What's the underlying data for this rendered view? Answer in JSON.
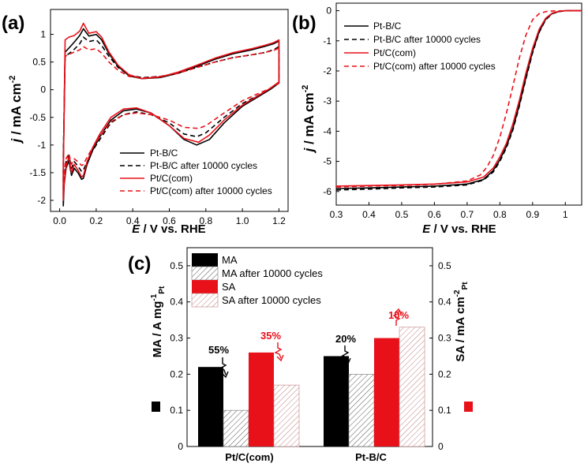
{
  "chart_data": [
    {
      "panel": "(a)",
      "type": "line",
      "xlabel_var": "E",
      "xlabel_rest": " / V vs. RHE",
      "ylabel_var": "j",
      "ylabel_rest": " / mA cm",
      "ylabel_sup": "-2",
      "xlim": [
        -0.05,
        1.25
      ],
      "ylim": [
        -2.2,
        1.45
      ],
      "xticks": [
        "0.0",
        "0.2",
        "0.4",
        "0.6",
        "0.8",
        "1.0",
        "1.2"
      ],
      "yticks": [
        "1",
        "0.5",
        "0",
        "-0.5",
        "-1",
        "-1.5",
        "-2"
      ],
      "series": [
        {
          "name": "Pt-B/C",
          "color": "#000000",
          "dash": "solid",
          "x": [
            0.02,
            0.03,
            0.05,
            0.08,
            0.11,
            0.13,
            0.16,
            0.2,
            0.23,
            0.27,
            0.32,
            0.38,
            0.45,
            0.55,
            0.65,
            0.75,
            0.85,
            0.95,
            1.05,
            1.12,
            1.17,
            1.2,
            1.2,
            1.15,
            1.1,
            1.0,
            0.9,
            0.82,
            0.75,
            0.68,
            0.6,
            0.5,
            0.42,
            0.35,
            0.28,
            0.22,
            0.18,
            0.15,
            0.13,
            0.12,
            0.1,
            0.08,
            0.065,
            0.05,
            0.035,
            0.025,
            0.02,
            0.02
          ],
          "y": [
            -1.4,
            0.68,
            0.75,
            0.86,
            0.98,
            1.1,
            0.97,
            1.0,
            0.9,
            0.65,
            0.42,
            0.25,
            0.2,
            0.22,
            0.3,
            0.42,
            0.55,
            0.65,
            0.72,
            0.78,
            0.83,
            0.88,
            0.12,
            0.0,
            -0.1,
            -0.3,
            -0.6,
            -0.9,
            -1.0,
            -0.9,
            -0.65,
            -0.42,
            -0.35,
            -0.38,
            -0.55,
            -0.85,
            -1.1,
            -1.35,
            -1.6,
            -1.62,
            -1.5,
            -1.42,
            -1.55,
            -1.28,
            -1.42,
            -1.7,
            -2.1,
            -1.4
          ]
        },
        {
          "name": "Pt-B/C after 10000 cycles",
          "color": "#000000",
          "dash": "6,4",
          "x": [
            0.02,
            0.03,
            0.05,
            0.08,
            0.11,
            0.13,
            0.16,
            0.2,
            0.23,
            0.27,
            0.32,
            0.38,
            0.45,
            0.55,
            0.65,
            0.75,
            0.85,
            0.95,
            1.05,
            1.12,
            1.17,
            1.2,
            1.2,
            1.15,
            1.1,
            1.0,
            0.9,
            0.8,
            0.75,
            0.68,
            0.6,
            0.5,
            0.42,
            0.35,
            0.28,
            0.22,
            0.18,
            0.15,
            0.13,
            0.12,
            0.1,
            0.08,
            0.065,
            0.05,
            0.035,
            0.025,
            0.02,
            0.02
          ],
          "y": [
            -1.2,
            0.6,
            0.65,
            0.73,
            0.83,
            0.95,
            0.87,
            0.9,
            0.8,
            0.6,
            0.4,
            0.26,
            0.22,
            0.24,
            0.3,
            0.4,
            0.5,
            0.58,
            0.63,
            0.67,
            0.72,
            0.78,
            0.12,
            0.0,
            -0.08,
            -0.25,
            -0.5,
            -0.78,
            -0.85,
            -0.8,
            -0.6,
            -0.45,
            -0.4,
            -0.45,
            -0.6,
            -0.9,
            -1.1,
            -1.3,
            -1.45,
            -1.48,
            -1.38,
            -1.3,
            -1.42,
            -1.18,
            -1.3,
            -1.55,
            -1.9,
            -1.2
          ]
        },
        {
          "name": "Pt/C(com)",
          "color": "#e8111a",
          "dash": "solid",
          "x": [
            0.02,
            0.03,
            0.05,
            0.08,
            0.11,
            0.13,
            0.16,
            0.2,
            0.23,
            0.27,
            0.32,
            0.38,
            0.45,
            0.55,
            0.65,
            0.75,
            0.85,
            0.95,
            1.05,
            1.12,
            1.17,
            1.2,
            1.2,
            1.15,
            1.1,
            1.0,
            0.9,
            0.82,
            0.76,
            0.68,
            0.6,
            0.5,
            0.42,
            0.35,
            0.28,
            0.22,
            0.18,
            0.15,
            0.13,
            0.12,
            0.1,
            0.08,
            0.065,
            0.05,
            0.035,
            0.025,
            0.02,
            0.02
          ],
          "y": [
            -1.5,
            0.9,
            0.95,
            0.98,
            1.06,
            1.2,
            1.02,
            1.05,
            0.95,
            0.68,
            0.44,
            0.27,
            0.2,
            0.23,
            0.32,
            0.44,
            0.57,
            0.67,
            0.74,
            0.8,
            0.85,
            0.9,
            0.14,
            0.02,
            -0.08,
            -0.28,
            -0.55,
            -0.82,
            -0.95,
            -0.88,
            -0.65,
            -0.42,
            -0.33,
            -0.35,
            -0.5,
            -0.8,
            -1.05,
            -1.3,
            -1.55,
            -1.58,
            -1.45,
            -1.35,
            -1.5,
            -1.22,
            -1.38,
            -1.65,
            -2.0,
            -1.5
          ]
        },
        {
          "name": "Pt/C(com) after 10000 cycles",
          "color": "#e8111a",
          "dash": "6,4",
          "x": [
            0.02,
            0.03,
            0.05,
            0.08,
            0.11,
            0.13,
            0.16,
            0.2,
            0.23,
            0.27,
            0.32,
            0.38,
            0.45,
            0.55,
            0.65,
            0.75,
            0.85,
            0.95,
            1.05,
            1.12,
            1.17,
            1.2,
            1.2,
            1.15,
            1.1,
            1.0,
            0.9,
            0.8,
            0.76,
            0.68,
            0.6,
            0.5,
            0.42,
            0.35,
            0.28,
            0.22,
            0.18,
            0.15,
            0.13,
            0.12,
            0.1,
            0.08,
            0.065,
            0.05,
            0.035,
            0.025,
            0.02,
            0.02
          ],
          "y": [
            -1.3,
            0.6,
            0.64,
            0.68,
            0.72,
            0.78,
            0.72,
            0.74,
            0.66,
            0.5,
            0.35,
            0.24,
            0.21,
            0.24,
            0.3,
            0.4,
            0.5,
            0.58,
            0.63,
            0.67,
            0.71,
            0.75,
            0.12,
            0.02,
            -0.05,
            -0.2,
            -0.42,
            -0.65,
            -0.7,
            -0.68,
            -0.55,
            -0.45,
            -0.42,
            -0.45,
            -0.58,
            -0.85,
            -1.05,
            -1.22,
            -1.35,
            -1.37,
            -1.3,
            -1.25,
            -1.35,
            -1.15,
            -1.25,
            -1.45,
            -1.7,
            -1.3
          ]
        }
      ]
    },
    {
      "panel": "(b)",
      "type": "line",
      "xlabel_var": "E",
      "xlabel_rest": " / V vs. RHE",
      "ylabel_var": "j",
      "ylabel_rest": " / mA cm",
      "ylabel_sup": "-2",
      "xlim": [
        0.3,
        1.05
      ],
      "ylim": [
        -6.45,
        0.25
      ],
      "xticks": [
        "0.3",
        "0.4",
        "0.5",
        "0.6",
        "0.7",
        "0.8",
        "0.9",
        "1"
      ],
      "yticks": [
        "0",
        "-1",
        "-2",
        "-3",
        "-4",
        "-5",
        "-6"
      ],
      "series": [
        {
          "name": "Pt-B/C",
          "color": "#000000",
          "dash": "solid",
          "x": [
            0.3,
            0.4,
            0.5,
            0.6,
            0.7,
            0.75,
            0.78,
            0.8,
            0.82,
            0.84,
            0.86,
            0.88,
            0.9,
            0.92,
            0.94,
            0.96,
            0.98,
            1.0,
            1.05
          ],
          "y": [
            -5.9,
            -5.88,
            -5.85,
            -5.82,
            -5.75,
            -5.6,
            -5.3,
            -4.95,
            -4.5,
            -3.9,
            -3.1,
            -2.2,
            -1.35,
            -0.7,
            -0.28,
            -0.09,
            -0.03,
            0.0,
            0.0
          ]
        },
        {
          "name": "Pt-B/C after 10000 cycles",
          "color": "#000000",
          "dash": "6,4",
          "x": [
            0.3,
            0.4,
            0.5,
            0.6,
            0.7,
            0.75,
            0.78,
            0.8,
            0.82,
            0.84,
            0.86,
            0.88,
            0.9,
            0.92,
            0.94,
            0.96,
            0.98,
            1.0,
            1.05
          ],
          "y": [
            -5.95,
            -5.92,
            -5.88,
            -5.85,
            -5.78,
            -5.62,
            -5.35,
            -5.0,
            -4.55,
            -3.95,
            -3.15,
            -2.25,
            -1.4,
            -0.72,
            -0.3,
            -0.1,
            -0.03,
            0.0,
            0.0
          ]
        },
        {
          "name": "Pt/C(com)",
          "color": "#e8111a",
          "dash": "solid",
          "x": [
            0.3,
            0.4,
            0.5,
            0.6,
            0.7,
            0.75,
            0.78,
            0.8,
            0.82,
            0.84,
            0.86,
            0.88,
            0.9,
            0.92,
            0.94,
            0.96,
            0.98,
            1.0,
            1.05
          ],
          "y": [
            -5.82,
            -5.8,
            -5.78,
            -5.75,
            -5.68,
            -5.52,
            -5.22,
            -4.85,
            -4.4,
            -3.75,
            -2.95,
            -2.05,
            -1.25,
            -0.62,
            -0.25,
            -0.08,
            -0.02,
            0.0,
            0.0
          ]
        },
        {
          "name": "Pt/C(com) after 10000 cycles",
          "color": "#e8111a",
          "dash": "6,4",
          "x": [
            0.3,
            0.4,
            0.5,
            0.6,
            0.7,
            0.74,
            0.76,
            0.78,
            0.8,
            0.82,
            0.84,
            0.86,
            0.88,
            0.9,
            0.92,
            0.94,
            0.96,
            1.0,
            1.05
          ],
          "y": [
            -5.85,
            -5.82,
            -5.8,
            -5.76,
            -5.65,
            -5.45,
            -5.2,
            -4.8,
            -4.2,
            -3.4,
            -2.5,
            -1.55,
            -0.8,
            -0.3,
            -0.1,
            -0.03,
            -0.01,
            0.0,
            0.0
          ]
        }
      ]
    },
    {
      "panel": "(c)",
      "type": "bar",
      "categories": [
        "Pt/C(com)",
        "Pt-B/C"
      ],
      "ylim": [
        0,
        0.55
      ],
      "yticks": [
        "0",
        "0.1",
        "0.2",
        "0.3",
        "0.4",
        "0.5"
      ],
      "ylabel_left": "MA / A mg",
      "ylabel_left_sup": "-1",
      "ylabel_left_sub": "Pt",
      "ylabel_right": "SA / mA cm",
      "ylabel_right_sup": "-2",
      "ylabel_right_sub": "Pt",
      "series": [
        {
          "name": "MA",
          "fill": "solid",
          "color": "#000000",
          "values": [
            0.22,
            0.25
          ]
        },
        {
          "name": "MA after 10000 cycles",
          "fill": "hatch",
          "color": "#000000",
          "values": [
            0.1,
            0.2
          ]
        },
        {
          "name": "SA",
          "fill": "solid",
          "color": "#e8111a",
          "values": [
            0.26,
            0.3
          ]
        },
        {
          "name": "SA after 10000 cycles",
          "fill": "hatch",
          "color": "#e8111a",
          "values": [
            0.17,
            0.33
          ]
        }
      ],
      "annotations": [
        {
          "text": "55%",
          "color": "#000000"
        },
        {
          "text": "35%",
          "color": "#e8111a"
        },
        {
          "text": "20%",
          "color": "#000000"
        },
        {
          "text": "10%",
          "color": "#e8111a"
        }
      ]
    }
  ]
}
